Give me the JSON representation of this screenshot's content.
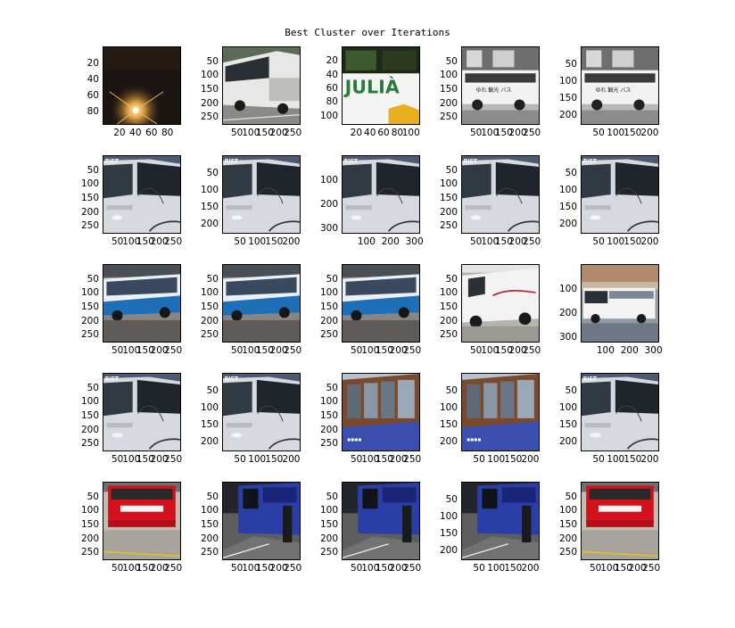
{
  "title": "Best Cluster over Iterations",
  "chart_data": {
    "type": "image_grid",
    "title": "Best Cluster over Iterations",
    "rows": 5,
    "cols": 5,
    "panels": [
      {
        "r": 0,
        "c": 0,
        "scene": "night-light",
        "xticks": [
          "20",
          "40",
          "60",
          "80"
        ],
        "yticks": [
          "20",
          "40",
          "60",
          "80"
        ],
        "xmax": 96,
        "ymax": 96
      },
      {
        "r": 0,
        "c": 1,
        "scene": "white-coach-road",
        "xticks": [
          "50",
          "100",
          "150",
          "200",
          "250"
        ],
        "yticks": [
          "50",
          "100",
          "150",
          "200",
          "250"
        ],
        "xmax": 275,
        "ymax": 275
      },
      {
        "r": 0,
        "c": 2,
        "scene": "julia-bus",
        "xticks": [
          "20",
          "40",
          "60",
          "80",
          "100"
        ],
        "yticks": [
          "20",
          "40",
          "60",
          "80",
          "100"
        ],
        "xmax": 112,
        "ymax": 112
      },
      {
        "r": 0,
        "c": 3,
        "scene": "bw-bus",
        "xticks": [
          "50",
          "100",
          "150",
          "200",
          "250"
        ],
        "yticks": [
          "50",
          "100",
          "150",
          "200",
          "250"
        ],
        "xmax": 275,
        "ymax": 275
      },
      {
        "r": 0,
        "c": 4,
        "scene": "bw-bus",
        "xticks": [
          "50",
          "100",
          "150",
          "200"
        ],
        "yticks": [
          "50",
          "100",
          "150",
          "200"
        ],
        "xmax": 225,
        "ymax": 225
      },
      {
        "r": 1,
        "c": 0,
        "scene": "coach-front",
        "xticks": [
          "50",
          "100",
          "150",
          "200",
          "250"
        ],
        "yticks": [
          "50",
          "100",
          "150",
          "200",
          "250"
        ],
        "xmax": 275,
        "ymax": 275
      },
      {
        "r": 1,
        "c": 1,
        "scene": "coach-front",
        "xticks": [
          "50",
          "100",
          "150",
          "200"
        ],
        "yticks": [
          "50",
          "100",
          "150",
          "200"
        ],
        "xmax": 225,
        "ymax": 225
      },
      {
        "r": 1,
        "c": 2,
        "scene": "coach-front",
        "xticks": [
          "100",
          "200",
          "300"
        ],
        "yticks": [
          "100",
          "200",
          "300"
        ],
        "xmax": 320,
        "ymax": 320
      },
      {
        "r": 1,
        "c": 3,
        "scene": "coach-front",
        "xticks": [
          "50",
          "100",
          "150",
          "200",
          "250"
        ],
        "yticks": [
          "50",
          "100",
          "150",
          "200",
          "250"
        ],
        "xmax": 275,
        "ymax": 275
      },
      {
        "r": 1,
        "c": 4,
        "scene": "coach-front",
        "xticks": [
          "50",
          "100",
          "150",
          "200"
        ],
        "yticks": [
          "50",
          "100",
          "150",
          "200"
        ],
        "xmax": 225,
        "ymax": 225
      },
      {
        "r": 2,
        "c": 0,
        "scene": "blue-coach",
        "xticks": [
          "50",
          "100",
          "150",
          "200",
          "250"
        ],
        "yticks": [
          "50",
          "100",
          "150",
          "200",
          "250"
        ],
        "xmax": 275,
        "ymax": 275
      },
      {
        "r": 2,
        "c": 1,
        "scene": "blue-coach",
        "xticks": [
          "50",
          "100",
          "150",
          "200",
          "250"
        ],
        "yticks": [
          "50",
          "100",
          "150",
          "200",
          "250"
        ],
        "xmax": 275,
        "ymax": 275
      },
      {
        "r": 2,
        "c": 2,
        "scene": "blue-coach",
        "xticks": [
          "50",
          "100",
          "150",
          "200",
          "250"
        ],
        "yticks": [
          "50",
          "100",
          "150",
          "200",
          "250"
        ],
        "xmax": 275,
        "ymax": 275
      },
      {
        "r": 2,
        "c": 3,
        "scene": "white-coach-red",
        "xticks": [
          "50",
          "100",
          "150",
          "200",
          "250"
        ],
        "yticks": [
          "50",
          "100",
          "150",
          "200",
          "250"
        ],
        "xmax": 275,
        "ymax": 275
      },
      {
        "r": 2,
        "c": 4,
        "scene": "white-bus-street",
        "xticks": [
          "100",
          "200",
          "300"
        ],
        "yticks": [
          "100",
          "200",
          "300"
        ],
        "xmax": 320,
        "ymax": 320
      },
      {
        "r": 3,
        "c": 0,
        "scene": "coach-front",
        "xticks": [
          "50",
          "100",
          "150",
          "200",
          "250"
        ],
        "yticks": [
          "50",
          "100",
          "150",
          "200",
          "250"
        ],
        "xmax": 275,
        "ymax": 275
      },
      {
        "r": 3,
        "c": 1,
        "scene": "coach-front",
        "xticks": [
          "50",
          "100",
          "150",
          "200"
        ],
        "yticks": [
          "50",
          "100",
          "150",
          "200"
        ],
        "xmax": 225,
        "ymax": 225
      },
      {
        "r": 3,
        "c": 2,
        "scene": "tram-window",
        "xticks": [
          "50",
          "100",
          "150",
          "200",
          "250"
        ],
        "yticks": [
          "50",
          "100",
          "150",
          "200",
          "250"
        ],
        "xmax": 275,
        "ymax": 275
      },
      {
        "r": 3,
        "c": 3,
        "scene": "tram-window",
        "xticks": [
          "50",
          "100",
          "150",
          "200"
        ],
        "yticks": [
          "50",
          "100",
          "150",
          "200"
        ],
        "xmax": 225,
        "ymax": 225
      },
      {
        "r": 3,
        "c": 4,
        "scene": "coach-front",
        "xticks": [
          "50",
          "100",
          "150",
          "200"
        ],
        "yticks": [
          "50",
          "100",
          "150",
          "200"
        ],
        "xmax": 225,
        "ymax": 225
      },
      {
        "r": 4,
        "c": 0,
        "scene": "red-bus",
        "xticks": [
          "50",
          "100",
          "150",
          "200",
          "250"
        ],
        "yticks": [
          "50",
          "100",
          "150",
          "200",
          "250"
        ],
        "xmax": 275,
        "ymax": 275
      },
      {
        "r": 4,
        "c": 1,
        "scene": "blue-bus-street",
        "xticks": [
          "50",
          "100",
          "150",
          "200",
          "250"
        ],
        "yticks": [
          "50",
          "100",
          "150",
          "200",
          "250"
        ],
        "xmax": 275,
        "ymax": 275
      },
      {
        "r": 4,
        "c": 2,
        "scene": "blue-bus-street",
        "xticks": [
          "50",
          "100",
          "150",
          "200",
          "250"
        ],
        "yticks": [
          "50",
          "100",
          "150",
          "200",
          "250"
        ],
        "xmax": 275,
        "ymax": 275
      },
      {
        "r": 4,
        "c": 3,
        "scene": "blue-bus-street",
        "xticks": [
          "50",
          "100",
          "150",
          "200"
        ],
        "yticks": [
          "50",
          "100",
          "150",
          "200"
        ],
        "xmax": 225,
        "ymax": 225
      },
      {
        "r": 4,
        "c": 4,
        "scene": "red-bus",
        "xticks": [
          "50",
          "100",
          "150",
          "200",
          "250"
        ],
        "yticks": [
          "50",
          "100",
          "150",
          "200",
          "250"
        ],
        "xmax": 275,
        "ymax": 275
      }
    ]
  }
}
